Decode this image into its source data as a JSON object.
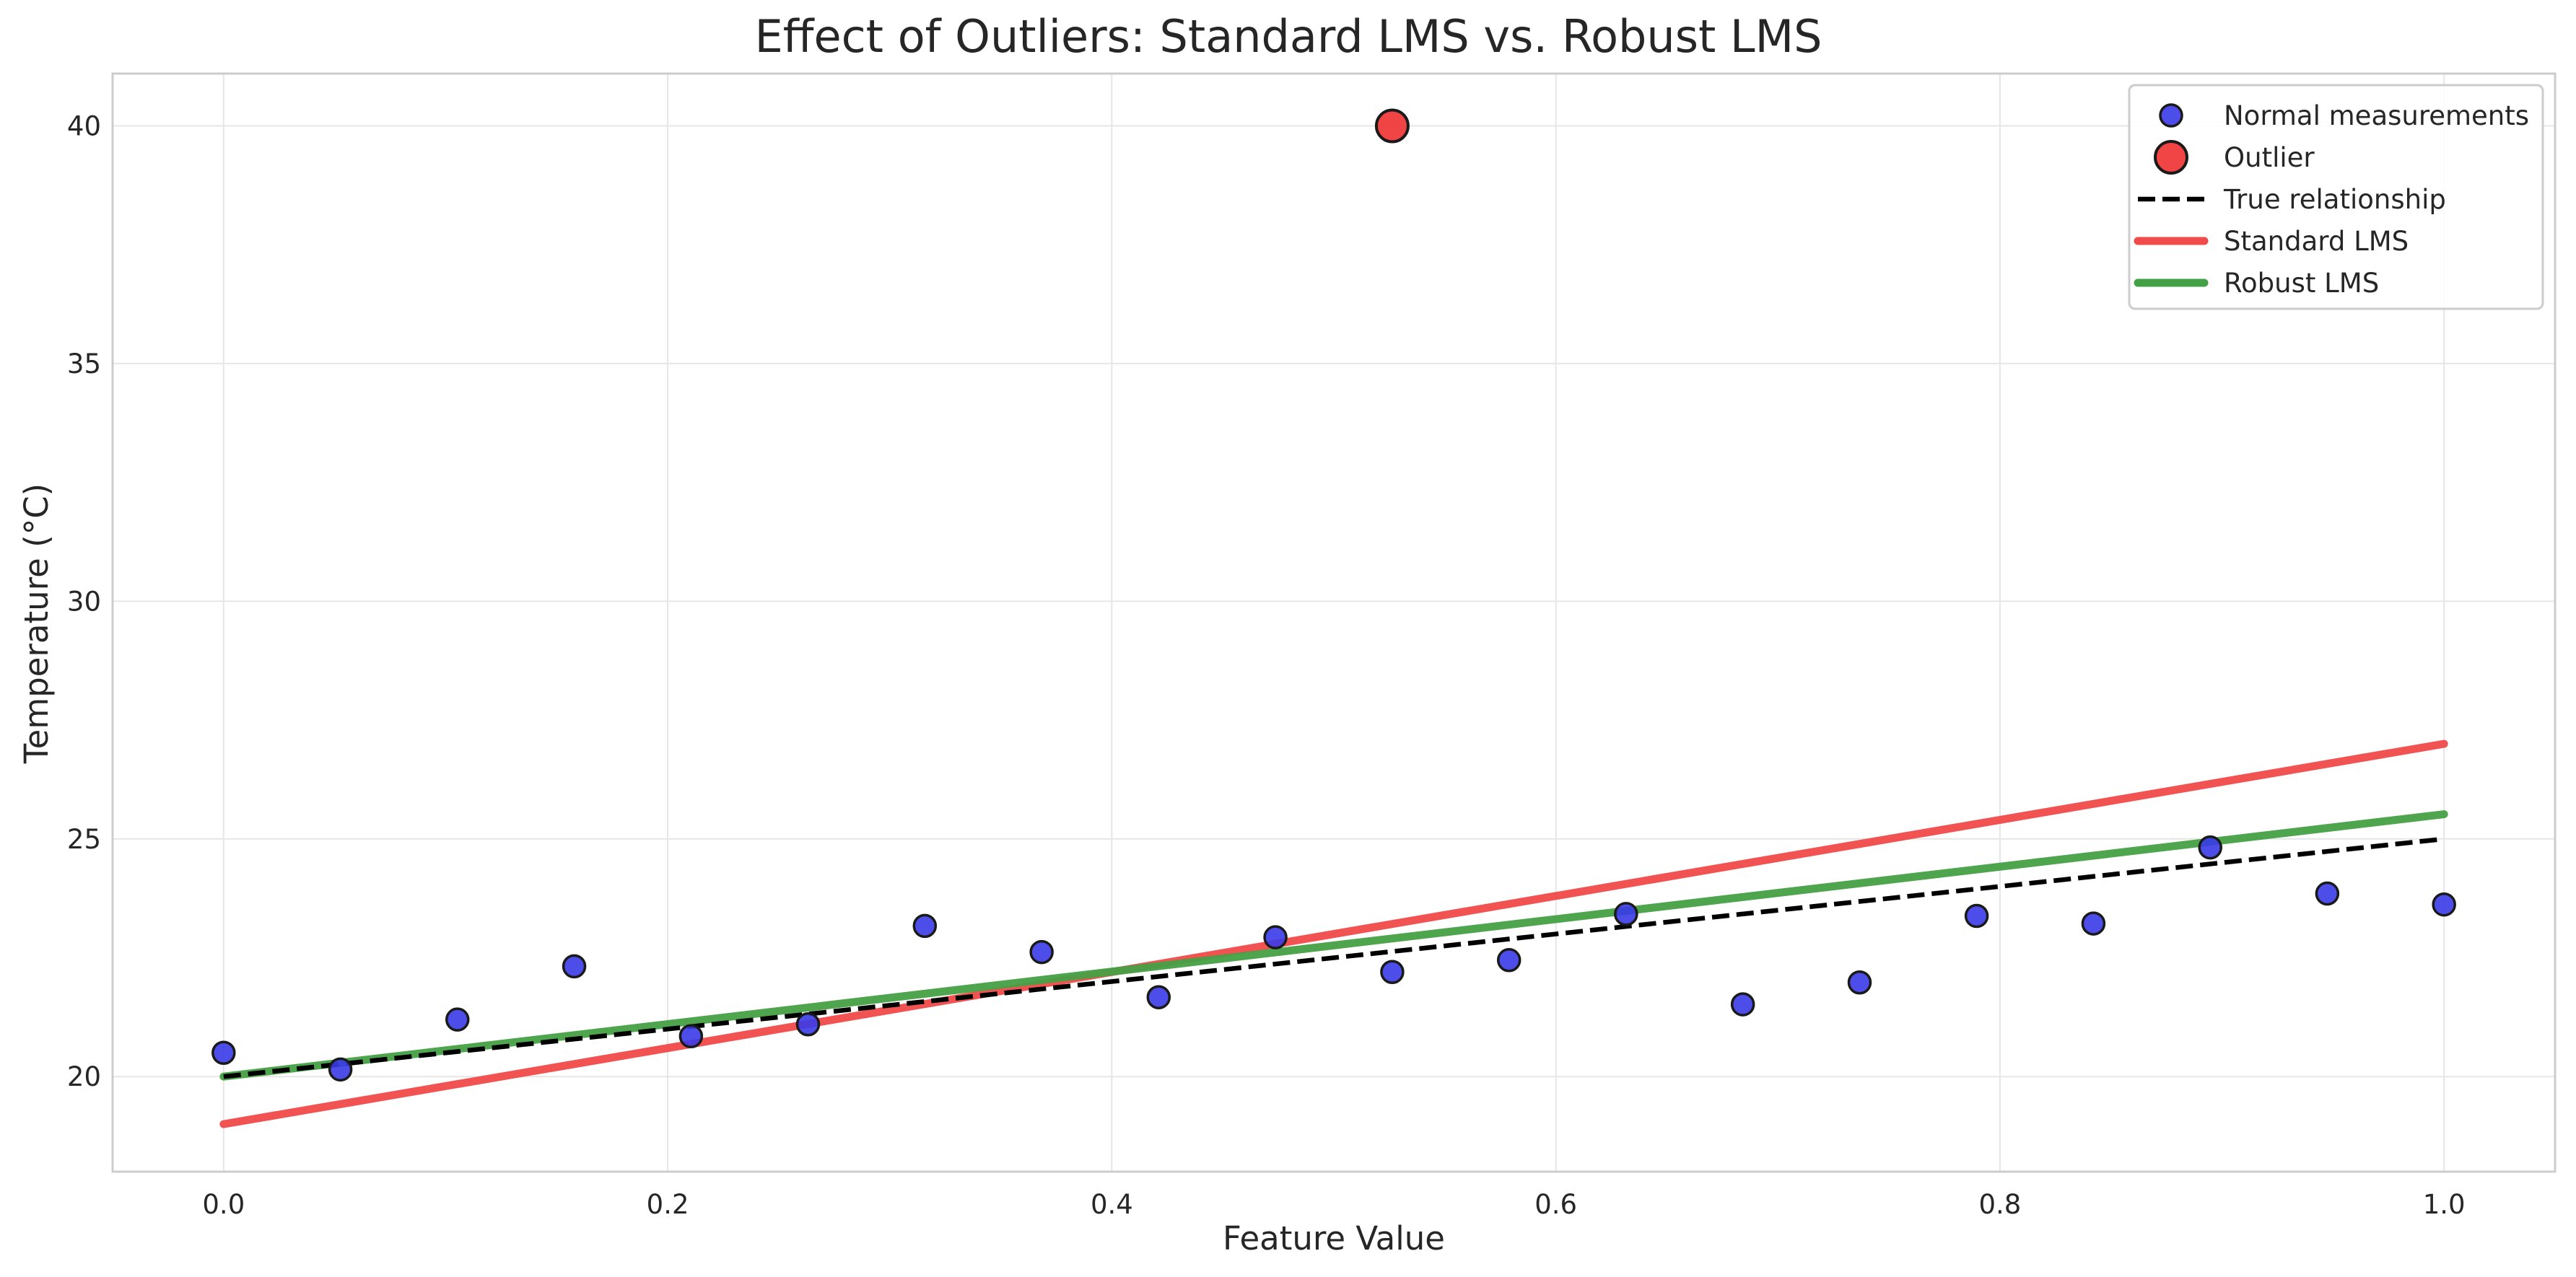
{
  "chart_data": {
    "type": "scatter",
    "title": "Effect of Outliers: Standard LMS vs. Robust LMS",
    "xlabel": "Feature Value",
    "ylabel": "Temperature (°C)",
    "xlim": [
      -0.05,
      1.05
    ],
    "ylim": [
      18.0,
      41.1
    ],
    "xticks": [
      0.0,
      0.2,
      0.4,
      0.6,
      0.8,
      1.0
    ],
    "xtick_labels": [
      "0.0",
      "0.2",
      "0.4",
      "0.6",
      "0.8",
      "1.0"
    ],
    "yticks": [
      20,
      25,
      30,
      35,
      40
    ],
    "ytick_labels": [
      "20",
      "25",
      "30",
      "35",
      "40"
    ],
    "grid": true,
    "legend_position": "top-right",
    "series": [
      {
        "name": "Normal measurements",
        "kind": "scatter",
        "color": "#3a3ae8",
        "x": [
          0.0,
          0.0526,
          0.1053,
          0.1579,
          0.2105,
          0.2632,
          0.3158,
          0.3684,
          0.4211,
          0.4737,
          0.5263,
          0.5789,
          0.6316,
          0.6842,
          0.7368,
          0.7895,
          0.8421,
          0.8947,
          0.9474,
          1.0
        ],
        "y": [
          20.5,
          20.15,
          21.2,
          22.32,
          20.85,
          21.1,
          23.17,
          22.62,
          21.67,
          22.93,
          22.2,
          22.45,
          23.42,
          21.52,
          21.98,
          23.38,
          23.22,
          24.82,
          23.85,
          23.62
        ]
      },
      {
        "name": "Outlier",
        "kind": "scatter",
        "color": "#f03030",
        "x": [
          0.5263
        ],
        "y": [
          40.0
        ]
      },
      {
        "name": "True relationship",
        "kind": "line",
        "style": "dashed",
        "color": "#000000",
        "x": [
          0.0,
          1.0
        ],
        "y": [
          20.0,
          25.0
        ]
      },
      {
        "name": "Standard LMS",
        "kind": "line",
        "style": "solid",
        "color": "#f04a4a",
        "x": [
          0.0,
          1.0
        ],
        "y": [
          19.0,
          27.0
        ]
      },
      {
        "name": "Robust LMS",
        "kind": "line",
        "style": "solid",
        "color": "#44a044",
        "x": [
          0.0,
          1.0
        ],
        "y": [
          20.0,
          25.52
        ]
      }
    ]
  }
}
